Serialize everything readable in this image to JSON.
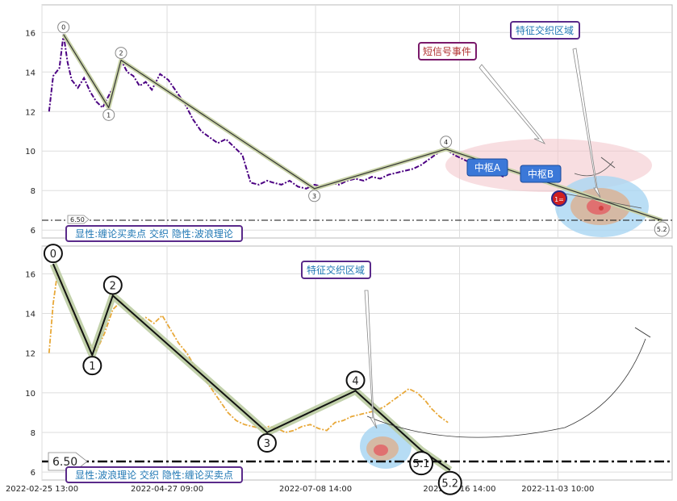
{
  "chart_data": [
    {
      "type": "line",
      "panel": "top",
      "ylim": [
        5.6,
        17.4
      ],
      "yticks": [
        6,
        8,
        10,
        12,
        14,
        16
      ],
      "xlim": [
        "2022-02-25 13:00",
        "2022-12-29 00:00"
      ],
      "grid": true,
      "series": [
        {
          "type": "dashdot",
          "color": "#4b0082",
          "x": [
            "2022-03-01",
            "2022-03-03",
            "2022-03-06",
            "2022-03-08",
            "2022-03-10",
            "2022-03-12",
            "2022-03-15",
            "2022-03-18",
            "2022-03-21",
            "2022-03-24",
            "2022-03-27",
            "2022-03-30",
            "2022-04-02",
            "2022-04-05",
            "2022-04-08",
            "2022-04-11",
            "2022-04-14",
            "2022-04-17",
            "2022-04-20",
            "2022-04-24",
            "2022-04-28",
            "2022-05-02",
            "2022-05-06",
            "2022-05-10",
            "2022-05-14",
            "2022-05-18",
            "2022-05-22",
            "2022-05-26",
            "2022-05-30",
            "2022-06-03",
            "2022-06-07",
            "2022-06-11",
            "2022-06-15",
            "2022-06-18",
            "2022-06-22",
            "2022-06-26",
            "2022-06-30",
            "2022-07-04",
            "2022-07-08",
            "2022-07-12",
            "2022-07-16",
            "2022-07-20",
            "2022-07-24",
            "2022-07-28",
            "2022-08-01",
            "2022-08-05",
            "2022-08-09",
            "2022-08-13",
            "2022-08-17",
            "2022-08-21",
            "2022-08-25",
            "2022-08-29",
            "2022-09-02",
            "2022-09-06",
            "2022-09-10",
            "2022-09-14",
            "2022-09-18",
            "2022-09-22",
            "2022-09-26",
            "2022-09-30",
            "2022-10-04",
            "2022-10-08"
          ],
          "y": [
            12.0,
            13.8,
            14.2,
            15.9,
            14.5,
            13.6,
            13.2,
            13.7,
            13.0,
            12.5,
            12.2,
            12.8,
            13.4,
            14.6,
            14.0,
            13.8,
            13.3,
            13.5,
            13.1,
            13.9,
            13.6,
            13.0,
            12.4,
            11.6,
            11.0,
            10.7,
            10.4,
            10.6,
            10.2,
            9.8,
            8.4,
            8.3,
            8.5,
            8.4,
            8.3,
            8.5,
            8.2,
            8.1,
            8.3,
            8.2,
            8.4,
            8.3,
            8.5,
            8.6,
            8.5,
            8.7,
            8.6,
            8.8,
            8.9,
            9.0,
            9.1,
            9.3,
            9.6,
            9.9,
            10.1,
            9.8,
            9.6,
            9.4,
            9.2,
            9.0,
            8.9,
            8.7
          ]
        }
      ],
      "strokes": {
        "labels": [
          "0",
          "1",
          "2",
          "3",
          "4",
          "5.2"
        ],
        "x": [
          "2022-03-08",
          "2022-03-30",
          "2022-04-05",
          "2022-07-08",
          "2022-09-10",
          "2022-12-24"
        ],
        "y": [
          15.9,
          12.2,
          14.6,
          8.1,
          10.1,
          6.5
        ]
      },
      "annotations": [
        "短信号事件",
        "特征交织区域",
        "中枢A",
        "中枢B",
        "1="
      ],
      "reference_line": {
        "value": 6.5,
        "label": "6.50"
      },
      "footnote": "显性:缠论买卖点 交织 隐性:波浪理论"
    },
    {
      "type": "line",
      "panel": "bottom",
      "ylim": [
        5.6,
        17.4
      ],
      "yticks": [
        6,
        8,
        10,
        12,
        14,
        16
      ],
      "xlim": [
        "2022-02-25 13:00",
        "2022-12-29 00:00"
      ],
      "xticks": [
        "2022-02-25 13:00",
        "2022-04-27 09:00",
        "2022-07-08 14:00",
        "2022-09-16 14:00",
        "2022-11-03 10:00"
      ],
      "grid": true,
      "series": [
        {
          "type": "dashdot",
          "color": "#e8a838",
          "x": [
            "2022-03-01",
            "2022-03-03",
            "2022-03-05",
            "2022-03-08",
            "2022-03-12",
            "2022-03-16",
            "2022-03-20",
            "2022-03-24",
            "2022-03-28",
            "2022-04-01",
            "2022-04-05",
            "2022-04-09",
            "2022-04-13",
            "2022-04-17",
            "2022-04-21",
            "2022-04-25",
            "2022-04-29",
            "2022-05-03",
            "2022-05-07",
            "2022-05-11",
            "2022-05-15",
            "2022-05-19",
            "2022-05-23",
            "2022-05-27",
            "2022-05-31",
            "2022-06-04",
            "2022-06-08",
            "2022-06-12",
            "2022-06-16",
            "2022-06-20",
            "2022-06-24",
            "2022-06-28",
            "2022-07-02",
            "2022-07-06",
            "2022-07-10",
            "2022-07-14",
            "2022-07-18",
            "2022-07-22",
            "2022-07-26",
            "2022-07-30",
            "2022-08-03",
            "2022-08-07",
            "2022-08-11",
            "2022-08-15",
            "2022-08-19",
            "2022-08-23",
            "2022-08-27",
            "2022-08-31",
            "2022-09-03",
            "2022-09-07",
            "2022-09-11"
          ],
          "y": [
            12.0,
            14.5,
            16.0,
            15.4,
            14.2,
            13.2,
            12.5,
            12.1,
            13.0,
            14.2,
            14.6,
            14.1,
            13.6,
            13.8,
            13.5,
            13.9,
            13.2,
            12.5,
            12.0,
            11.3,
            10.8,
            10.2,
            9.6,
            9.0,
            8.6,
            8.4,
            8.3,
            8.2,
            8.3,
            8.2,
            8.0,
            8.1,
            8.3,
            8.4,
            8.2,
            8.1,
            8.5,
            8.6,
            8.8,
            8.9,
            9.0,
            9.1,
            9.3,
            9.6,
            9.9,
            10.2,
            10.0,
            9.6,
            9.2,
            8.8,
            8.5
          ]
        }
      ],
      "strokes": {
        "labels": [
          "0",
          "1",
          "2",
          "3",
          "4",
          "5.1",
          "5.2"
        ],
        "x": [
          "2022-03-03",
          "2022-03-22",
          "2022-04-01",
          "2022-06-15",
          "2022-07-28",
          "2022-08-29",
          "2022-09-12"
        ],
        "y": [
          16.5,
          11.9,
          14.9,
          8.0,
          10.1,
          7.1,
          6.1
        ]
      },
      "annotations": [
        "特征交织区域"
      ],
      "reference_line": {
        "value": 6.5,
        "label": "6.50"
      },
      "footnote": "显性:波浪理论 交织 隐性:缠论买卖点"
    }
  ]
}
